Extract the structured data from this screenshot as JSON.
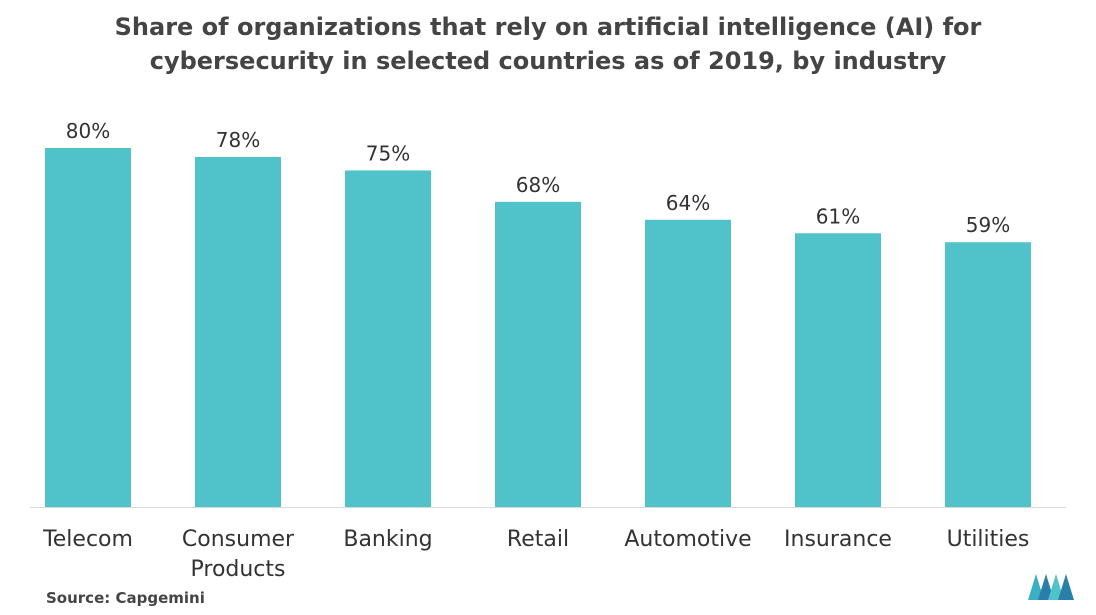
{
  "chart_data": {
    "type": "bar",
    "title": "Share of organizations that rely on artificial intelligence (AI) for cybersecurity in selected countries as of 2019, by industry",
    "categories": [
      "Telecom",
      "Consumer Products",
      "Banking",
      "Retail",
      "Automotive",
      "Insurance",
      "Utilities"
    ],
    "category_lines": [
      [
        "Telecom"
      ],
      [
        "Consumer",
        "Products"
      ],
      [
        "Banking"
      ],
      [
        "Retail"
      ],
      [
        "Automotive"
      ],
      [
        "Insurance"
      ],
      [
        "Utilities"
      ]
    ],
    "values": [
      80,
      78,
      75,
      68,
      64,
      61,
      59
    ],
    "value_labels": [
      "80%",
      "78%",
      "75%",
      "68%",
      "64%",
      "61%",
      "59%"
    ],
    "unit": "%",
    "ylim": [
      0,
      80
    ],
    "grid": false,
    "legend": "none",
    "bar_color": "#4fc3c9",
    "source": "Source: Capgemini"
  }
}
